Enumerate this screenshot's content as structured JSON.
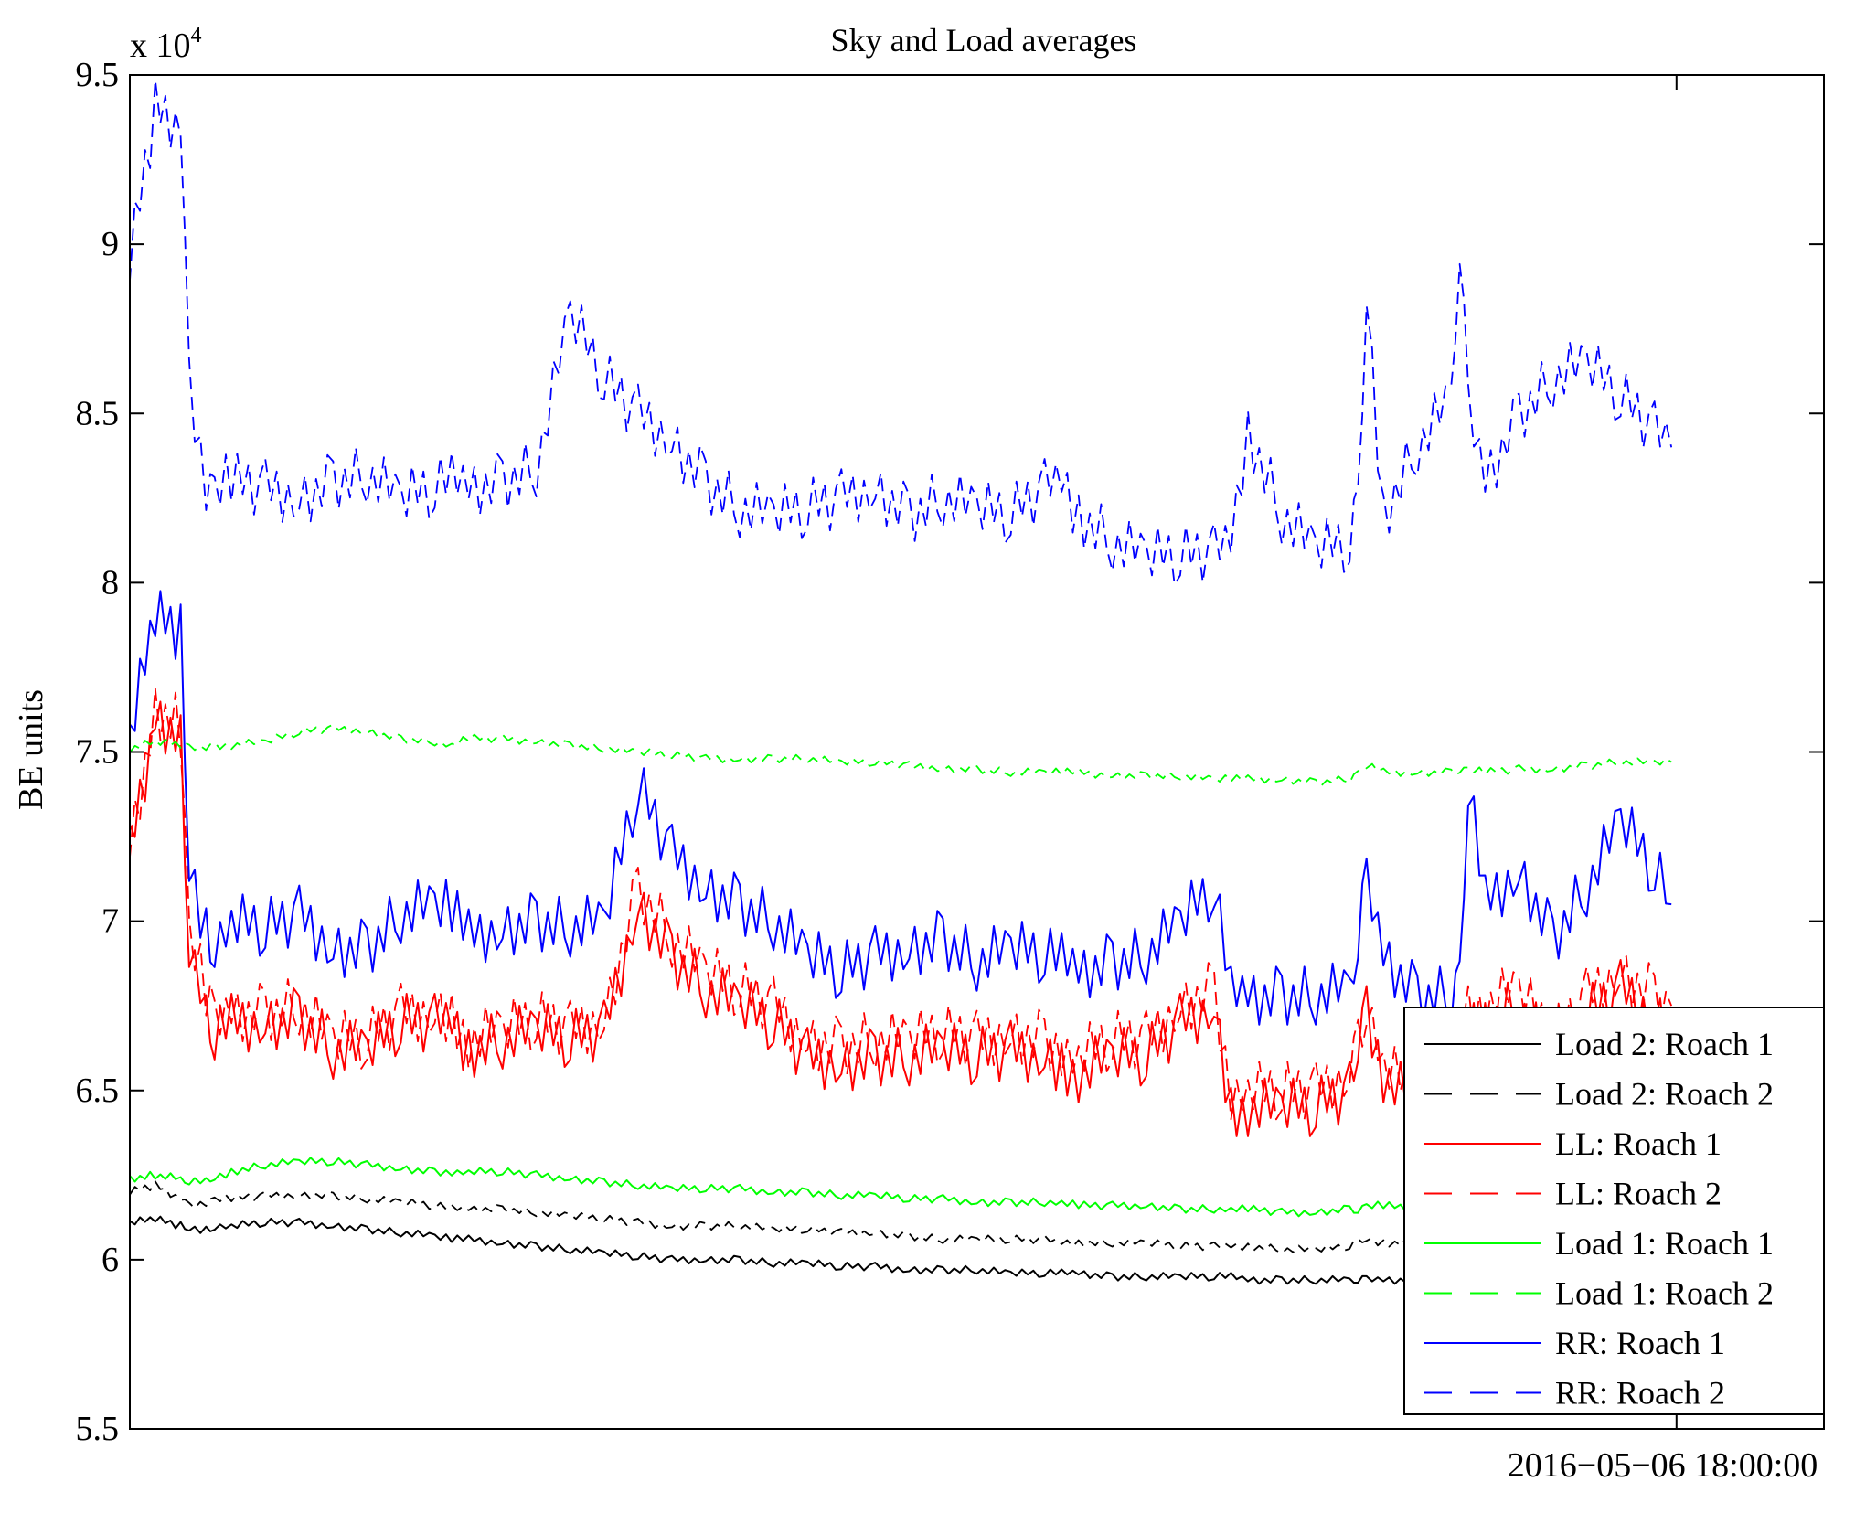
{
  "chart_data": {
    "type": "line",
    "title": "Sky and Load averages",
    "ylabel": "BE units",
    "xlabel": "",
    "y_exponent_label": "x 10",
    "y_exponent_power": "4",
    "ylim": [
      5.5,
      9.5
    ],
    "y_ticks": [
      5.5,
      6,
      6.5,
      7,
      7.5,
      8,
      8.5,
      9,
      9.5
    ],
    "y_tick_labels": [
      "5.5",
      "6",
      "6.5",
      "7",
      "7.5",
      "8",
      "8.5",
      "9",
      "9.5"
    ],
    "xlim": [
      0,
      100
    ],
    "x_ticks": [
      91.3
    ],
    "x_tick_labels": [
      "2016−05−06 18:00:00"
    ],
    "legend_position": "bottom-right",
    "x": [
      0,
      1.5,
      3,
      3.5,
      4.5,
      5,
      6,
      8,
      10,
      12,
      14,
      16,
      18,
      19,
      20,
      22,
      24,
      26,
      28,
      30,
      32,
      34,
      36,
      38,
      40,
      42,
      44,
      46,
      48,
      50,
      52,
      54,
      55,
      56,
      58,
      60,
      62,
      64,
      65,
      66,
      68,
      70,
      72,
      72.5,
      73,
      74,
      76,
      78,
      78.5,
      79,
      80,
      82,
      84,
      86,
      88,
      90,
      91
    ],
    "series": [
      {
        "name": "Load 2: Roach 1",
        "color": "#000000",
        "dash": "solid",
        "values": [
          6.11,
          6.12,
          6.1,
          6.09,
          6.09,
          6.1,
          6.1,
          6.11,
          6.11,
          6.1,
          6.09,
          6.08,
          6.07,
          6.06,
          6.06,
          6.05,
          6.04,
          6.03,
          6.02,
          6.01,
          6.0,
          6.0,
          6.0,
          5.99,
          5.99,
          5.98,
          5.98,
          5.97,
          5.97,
          5.97,
          5.96,
          5.96,
          5.96,
          5.96,
          5.95,
          5.95,
          5.95,
          5.95,
          5.95,
          5.94,
          5.94,
          5.94,
          5.94,
          5.94,
          5.94,
          5.94,
          5.94,
          5.95,
          5.95,
          5.95,
          5.94,
          5.94,
          5.94,
          5.94,
          5.94,
          5.94,
          5.94
        ]
      },
      {
        "name": "Load 2: Roach 2",
        "color": "#000000",
        "dash": "dashed",
        "values": [
          6.2,
          6.22,
          6.18,
          6.16,
          6.17,
          6.18,
          6.18,
          6.19,
          6.19,
          6.19,
          6.18,
          6.17,
          6.16,
          6.15,
          6.15,
          6.15,
          6.14,
          6.13,
          6.12,
          6.11,
          6.1,
          6.1,
          6.1,
          6.09,
          6.09,
          6.08,
          6.08,
          6.07,
          6.06,
          6.06,
          6.06,
          6.06,
          6.05,
          6.05,
          6.05,
          6.05,
          6.04,
          6.04,
          6.04,
          6.04,
          6.03,
          6.03,
          6.04,
          6.05,
          6.06,
          6.05,
          6.05,
          6.06,
          6.06,
          6.07,
          6.06,
          6.05,
          6.05,
          6.05,
          6.05,
          6.05,
          6.05
        ]
      },
      {
        "name": "LL: Roach 1",
        "color": "#ff0000",
        "dash": "solid",
        "values": [
          7.2,
          7.6,
          7.55,
          6.95,
          6.75,
          6.65,
          6.7,
          6.7,
          6.72,
          6.62,
          6.62,
          6.7,
          6.7,
          6.7,
          6.62,
          6.65,
          6.68,
          6.65,
          6.68,
          7.05,
          6.9,
          6.8,
          6.75,
          6.7,
          6.6,
          6.58,
          6.6,
          6.6,
          6.62,
          6.6,
          6.62,
          6.6,
          6.58,
          6.55,
          6.6,
          6.6,
          6.7,
          6.75,
          6.45,
          6.45,
          6.45,
          6.45,
          6.5,
          6.62,
          6.75,
          6.55,
          6.45,
          6.45,
          6.5,
          6.7,
          6.7,
          6.75,
          6.6,
          6.72,
          6.8,
          6.72,
          6.7
        ]
      },
      {
        "name": "LL: Roach 2",
        "color": "#ff0000",
        "dash": "dashed",
        "values": [
          7.22,
          7.63,
          7.58,
          6.98,
          6.78,
          6.68,
          6.73,
          6.73,
          6.75,
          6.65,
          6.65,
          6.73,
          6.73,
          6.73,
          6.65,
          6.68,
          6.71,
          6.68,
          6.71,
          7.1,
          6.95,
          6.85,
          6.8,
          6.75,
          6.65,
          6.63,
          6.65,
          6.65,
          6.67,
          6.65,
          6.67,
          6.65,
          6.63,
          6.6,
          6.65,
          6.65,
          6.75,
          6.8,
          6.5,
          6.5,
          6.5,
          6.5,
          6.55,
          6.65,
          6.78,
          6.58,
          6.48,
          6.48,
          6.55,
          6.75,
          6.75,
          6.8,
          6.65,
          6.78,
          6.85,
          6.78,
          6.75
        ]
      },
      {
        "name": "Load 1: Roach 1",
        "color": "#00ff00",
        "dash": "solid",
        "values": [
          6.24,
          6.25,
          6.24,
          6.23,
          6.23,
          6.24,
          6.26,
          6.28,
          6.29,
          6.29,
          6.28,
          6.27,
          6.26,
          6.26,
          6.26,
          6.26,
          6.25,
          6.24,
          6.23,
          6.22,
          6.21,
          6.21,
          6.21,
          6.2,
          6.2,
          6.19,
          6.19,
          6.18,
          6.18,
          6.17,
          6.17,
          6.17,
          6.17,
          6.16,
          6.16,
          6.16,
          6.15,
          6.15,
          6.15,
          6.15,
          6.14,
          6.14,
          6.15,
          6.15,
          6.16,
          6.16,
          6.15,
          6.16,
          6.16,
          6.16,
          6.16,
          6.15,
          6.15,
          6.15,
          6.15,
          6.15,
          6.15
        ]
      },
      {
        "name": "Load 1: Roach 2",
        "color": "#00ff00",
        "dash": "dashed",
        "values": [
          7.51,
          7.53,
          7.52,
          7.51,
          7.51,
          7.52,
          7.52,
          7.53,
          7.56,
          7.57,
          7.56,
          7.54,
          7.53,
          7.52,
          7.54,
          7.54,
          7.53,
          7.52,
          7.51,
          7.5,
          7.49,
          7.48,
          7.48,
          7.48,
          7.48,
          7.47,
          7.47,
          7.46,
          7.45,
          7.45,
          7.44,
          7.44,
          7.44,
          7.44,
          7.43,
          7.43,
          7.43,
          7.42,
          7.42,
          7.42,
          7.42,
          7.41,
          7.42,
          7.44,
          7.46,
          7.44,
          7.44,
          7.44,
          7.45,
          7.45,
          7.44,
          7.45,
          7.45,
          7.46,
          7.47,
          7.47,
          7.47
        ]
      },
      {
        "name": "RR: Roach 1",
        "color": "#0000ff",
        "dash": "solid",
        "values": [
          7.55,
          7.9,
          7.85,
          7.15,
          6.98,
          6.95,
          7.0,
          6.98,
          7.02,
          6.92,
          6.92,
          7.02,
          7.05,
          7.03,
          6.95,
          6.98,
          7.0,
          6.98,
          7.0,
          7.4,
          7.2,
          7.1,
          7.05,
          7.0,
          6.9,
          6.85,
          6.9,
          6.92,
          6.95,
          6.88,
          6.92,
          6.9,
          6.88,
          6.85,
          6.88,
          6.9,
          7.0,
          7.1,
          6.78,
          6.78,
          6.78,
          6.78,
          6.8,
          6.95,
          7.1,
          6.9,
          6.78,
          6.78,
          6.85,
          7.4,
          7.05,
          7.15,
          6.95,
          7.1,
          7.3,
          7.15,
          7.05
        ]
      },
      {
        "name": "RR: Roach 2",
        "color": "#0000ff",
        "dash": "dashed",
        "values": [
          8.95,
          9.4,
          9.35,
          8.6,
          8.3,
          8.28,
          8.3,
          8.28,
          8.25,
          8.3,
          8.32,
          8.25,
          8.28,
          8.3,
          8.28,
          8.3,
          8.34,
          8.8,
          8.6,
          8.5,
          8.42,
          8.3,
          8.22,
          8.2,
          8.22,
          8.25,
          8.28,
          8.2,
          8.25,
          8.22,
          8.2,
          8.28,
          8.3,
          8.2,
          8.12,
          8.08,
          8.08,
          8.09,
          8.12,
          8.45,
          8.2,
          8.1,
          8.12,
          8.2,
          8.85,
          8.2,
          8.4,
          8.55,
          9.0,
          8.5,
          8.3,
          8.5,
          8.6,
          8.65,
          8.55,
          8.45,
          8.4
        ]
      }
    ]
  }
}
